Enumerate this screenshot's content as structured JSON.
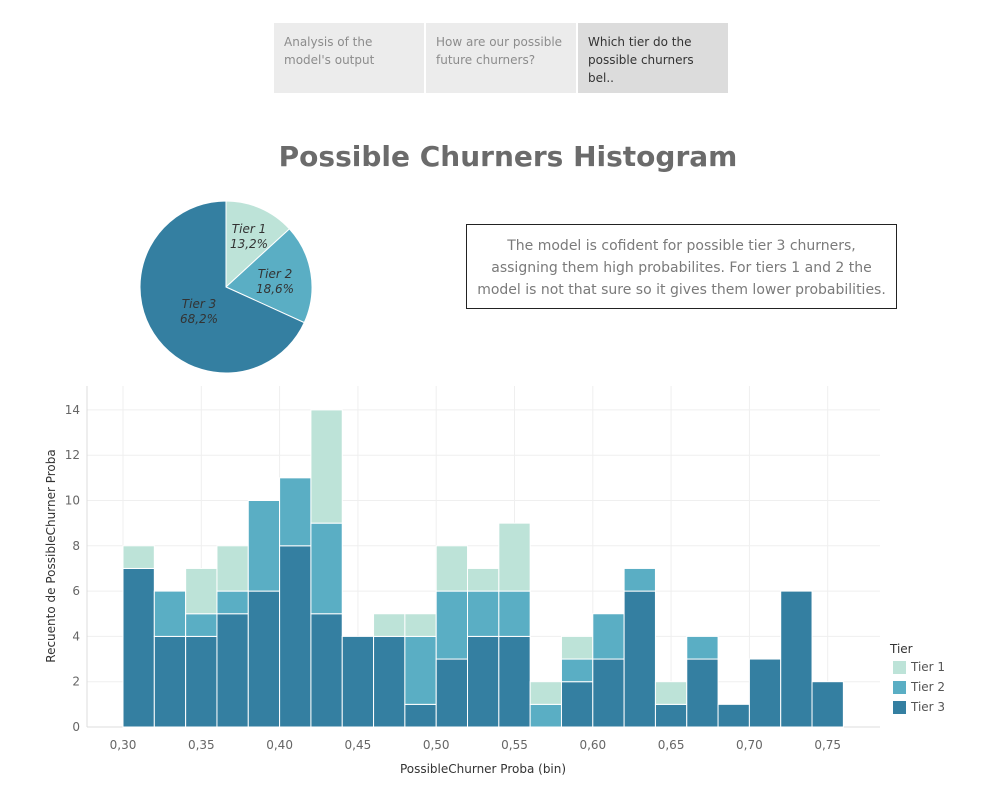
{
  "tabs": [
    {
      "label": "Analysis of the model's output"
    },
    {
      "label": "How are our possible future churners?"
    },
    {
      "label": "Which tier do the possible churners bel.."
    }
  ],
  "title": "Possible Churners Histogram",
  "note": "The model is cofident for possible tier 3 churners, assigning them high probabilites. For tiers 1 and 2 the model is not that sure so it gives them lower probabilities.",
  "colors": {
    "tier1": "#bde3d8",
    "tier2": "#5aaec4",
    "tier3": "#347fa1"
  },
  "legend": {
    "title": "Tier",
    "items": [
      "Tier 1",
      "Tier 2",
      "Tier 3"
    ]
  },
  "chart_data": [
    {
      "type": "pie",
      "slices": [
        {
          "label": "Tier 1",
          "value_label": "13,2%",
          "value": 13.2
        },
        {
          "label": "Tier 2",
          "value_label": "18,6%",
          "value": 18.6
        },
        {
          "label": "Tier 3",
          "value_label": "68,2%",
          "value": 68.2
        }
      ]
    },
    {
      "type": "bar",
      "stacked": true,
      "xlabel": "PossibleChurner Proba (bin)",
      "ylabel": "Recuento de PossibleChurner Proba",
      "x_ticks": [
        "0,30",
        "0,35",
        "0,40",
        "0,45",
        "0,50",
        "0,55",
        "0,60",
        "0,65",
        "0,70",
        "0,75"
      ],
      "y_ticks": [
        "0",
        "2",
        "4",
        "6",
        "8",
        "10",
        "12",
        "14"
      ],
      "ylim": [
        0,
        14
      ],
      "bin_width": 0.02,
      "bins": [
        0.3,
        0.32,
        0.34,
        0.36,
        0.38,
        0.4,
        0.42,
        0.44,
        0.46,
        0.48,
        0.5,
        0.52,
        0.54,
        0.56,
        0.58,
        0.6,
        0.62,
        0.64,
        0.66,
        0.68,
        0.7,
        0.72,
        0.74
      ],
      "series": [
        {
          "name": "Tier 3",
          "values": [
            7,
            4,
            4,
            5,
            6,
            8,
            5,
            4,
            4,
            1,
            3,
            4,
            4,
            0,
            2,
            3,
            6,
            1,
            3,
            1,
            3,
            6,
            2
          ]
        },
        {
          "name": "Tier 2",
          "values": [
            0,
            2,
            1,
            1,
            4,
            3,
            4,
            0,
            0,
            3,
            3,
            2,
            2,
            1,
            1,
            2,
            1,
            0,
            1,
            0,
            0,
            0,
            0
          ]
        },
        {
          "name": "Tier 1",
          "values": [
            1,
            0,
            2,
            2,
            0,
            0,
            5,
            0,
            1,
            1,
            2,
            1,
            3,
            1,
            1,
            0,
            0,
            1,
            0,
            0,
            0,
            0,
            0
          ]
        }
      ]
    }
  ]
}
